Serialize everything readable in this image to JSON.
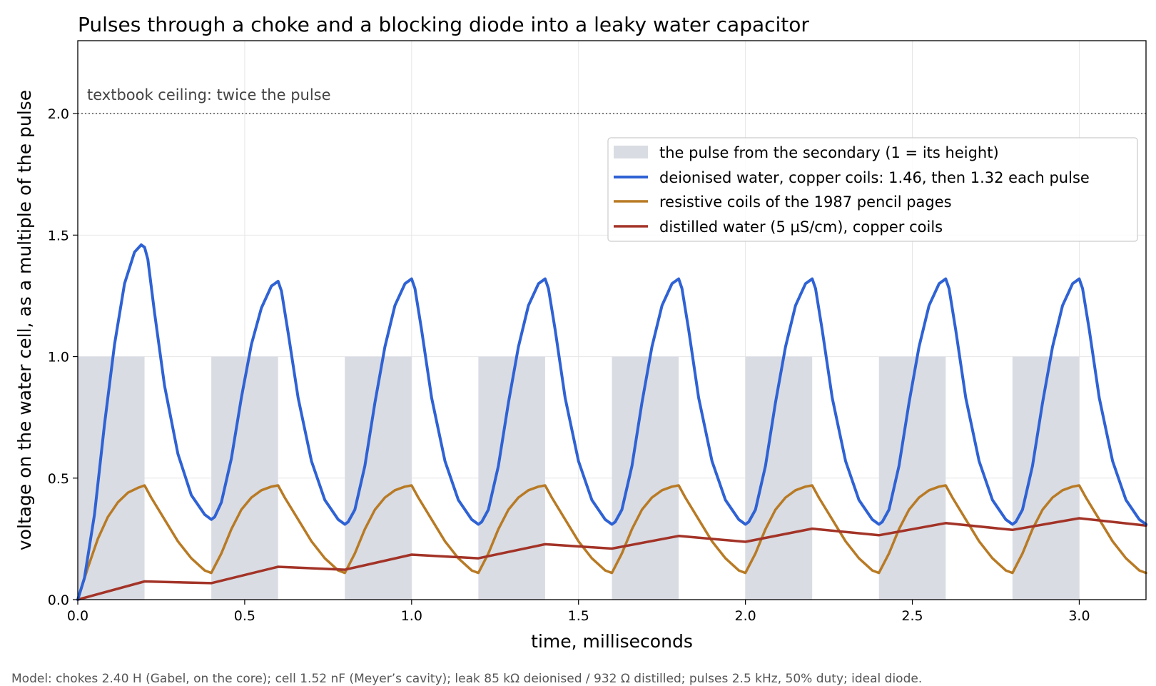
{
  "chart_data": {
    "type": "line",
    "title": "Pulses through a choke and a blocking diode into a leaky water capacitor",
    "xlabel": "time, milliseconds",
    "ylabel": "voltage on the water cell, as a multiple of the pulse",
    "xlim": [
      0,
      3.2
    ],
    "ylim": [
      0,
      2.3
    ],
    "xticks": [
      0.0,
      0.5,
      1.0,
      1.5,
      2.0,
      2.5,
      3.0
    ],
    "yticks": [
      0.0,
      0.5,
      1.0,
      1.5,
      2.0
    ],
    "grid": true,
    "legend_position": "upper-right",
    "ceiling": {
      "y": 2.0,
      "label": "textbook ceiling: twice the pulse"
    },
    "pulses": {
      "name": "the pulse from the secondary (1 = its height)",
      "color": "#d9dce3",
      "height": 1.0,
      "intervals": [
        [
          0.0,
          0.2
        ],
        [
          0.4,
          0.6
        ],
        [
          0.8,
          1.0
        ],
        [
          1.2,
          1.4
        ],
        [
          1.6,
          1.8
        ],
        [
          2.0,
          2.2
        ],
        [
          2.4,
          2.6
        ],
        [
          2.8,
          3.0
        ]
      ]
    },
    "series": [
      {
        "name": "deionised water, copper coils: 1.46, then 1.32 each pulse",
        "color": "#2f62d4",
        "width": 4,
        "x": [
          0.0,
          0.02,
          0.05,
          0.08,
          0.11,
          0.14,
          0.17,
          0.19,
          0.2,
          0.21,
          0.23,
          0.26,
          0.3,
          0.34,
          0.38,
          0.4,
          0.41,
          0.43,
          0.46,
          0.49,
          0.52,
          0.55,
          0.58,
          0.6,
          0.61,
          0.63,
          0.66,
          0.7,
          0.74,
          0.78,
          0.8,
          0.81,
          0.83,
          0.86,
          0.89,
          0.92,
          0.95,
          0.98,
          1.0,
          1.01,
          1.03,
          1.06,
          1.1,
          1.14,
          1.18,
          1.2,
          1.21,
          1.23,
          1.26,
          1.29,
          1.32,
          1.35,
          1.38,
          1.4,
          1.41,
          1.43,
          1.46,
          1.5,
          1.54,
          1.58,
          1.6,
          1.61,
          1.63,
          1.66,
          1.69,
          1.72,
          1.75,
          1.78,
          1.8,
          1.81,
          1.83,
          1.86,
          1.9,
          1.94,
          1.98,
          2.0,
          2.01,
          2.03,
          2.06,
          2.09,
          2.12,
          2.15,
          2.18,
          2.2,
          2.21,
          2.23,
          2.26,
          2.3,
          2.34,
          2.38,
          2.4,
          2.41,
          2.43,
          2.46,
          2.49,
          2.52,
          2.55,
          2.58,
          2.6,
          2.61,
          2.63,
          2.66,
          2.7,
          2.74,
          2.78,
          2.8,
          2.81,
          2.83,
          2.86,
          2.89,
          2.92,
          2.95,
          2.98,
          3.0,
          3.01,
          3.03,
          3.06,
          3.1,
          3.14,
          3.18,
          3.2
        ],
        "y": [
          0.0,
          0.09,
          0.35,
          0.72,
          1.05,
          1.3,
          1.43,
          1.46,
          1.45,
          1.4,
          1.18,
          0.88,
          0.6,
          0.43,
          0.35,
          0.33,
          0.34,
          0.4,
          0.58,
          0.83,
          1.05,
          1.2,
          1.29,
          1.31,
          1.27,
          1.1,
          0.83,
          0.57,
          0.41,
          0.33,
          0.31,
          0.32,
          0.37,
          0.55,
          0.81,
          1.04,
          1.21,
          1.3,
          1.32,
          1.28,
          1.11,
          0.83,
          0.57,
          0.41,
          0.33,
          0.31,
          0.32,
          0.37,
          0.55,
          0.81,
          1.04,
          1.21,
          1.3,
          1.32,
          1.28,
          1.11,
          0.83,
          0.57,
          0.41,
          0.33,
          0.31,
          0.32,
          0.37,
          0.55,
          0.81,
          1.04,
          1.21,
          1.3,
          1.32,
          1.28,
          1.11,
          0.83,
          0.57,
          0.41,
          0.33,
          0.31,
          0.32,
          0.37,
          0.55,
          0.81,
          1.04,
          1.21,
          1.3,
          1.32,
          1.28,
          1.11,
          0.83,
          0.57,
          0.41,
          0.33,
          0.31,
          0.32,
          0.37,
          0.55,
          0.81,
          1.04,
          1.21,
          1.3,
          1.32,
          1.28,
          1.11,
          0.83,
          0.57,
          0.41,
          0.33,
          0.31,
          0.32,
          0.37,
          0.55,
          0.81,
          1.04,
          1.21,
          1.3,
          1.32,
          1.28,
          1.11,
          0.83,
          0.57,
          0.41,
          0.33,
          0.31
        ]
      },
      {
        "name": "resistive coils of the 1987 pencil pages",
        "color": "#b87a24",
        "width": 3.5,
        "x": [
          0.0,
          0.03,
          0.06,
          0.09,
          0.12,
          0.15,
          0.18,
          0.2,
          0.22,
          0.26,
          0.3,
          0.34,
          0.38,
          0.4,
          0.43,
          0.46,
          0.49,
          0.52,
          0.55,
          0.58,
          0.6,
          0.62,
          0.66,
          0.7,
          0.74,
          0.78,
          0.8,
          0.83,
          0.86,
          0.89,
          0.92,
          0.95,
          0.98,
          1.0,
          1.02,
          1.06,
          1.1,
          1.14,
          1.18,
          1.2,
          1.23,
          1.26,
          1.29,
          1.32,
          1.35,
          1.38,
          1.4,
          1.42,
          1.46,
          1.5,
          1.54,
          1.58,
          1.6,
          1.63,
          1.66,
          1.69,
          1.72,
          1.75,
          1.78,
          1.8,
          1.82,
          1.86,
          1.9,
          1.94,
          1.98,
          2.0,
          2.03,
          2.06,
          2.09,
          2.12,
          2.15,
          2.18,
          2.2,
          2.22,
          2.26,
          2.3,
          2.34,
          2.38,
          2.4,
          2.43,
          2.46,
          2.49,
          2.52,
          2.55,
          2.58,
          2.6,
          2.62,
          2.66,
          2.7,
          2.74,
          2.78,
          2.8,
          2.83,
          2.86,
          2.89,
          2.92,
          2.95,
          2.98,
          3.0,
          3.02,
          3.06,
          3.1,
          3.14,
          3.18,
          3.2
        ],
        "y": [
          0.0,
          0.13,
          0.25,
          0.34,
          0.4,
          0.44,
          0.46,
          0.47,
          0.42,
          0.33,
          0.24,
          0.17,
          0.12,
          0.11,
          0.19,
          0.29,
          0.37,
          0.42,
          0.45,
          0.465,
          0.47,
          0.42,
          0.33,
          0.24,
          0.17,
          0.12,
          0.11,
          0.19,
          0.29,
          0.37,
          0.42,
          0.45,
          0.465,
          0.47,
          0.42,
          0.33,
          0.24,
          0.17,
          0.12,
          0.11,
          0.19,
          0.29,
          0.37,
          0.42,
          0.45,
          0.465,
          0.47,
          0.42,
          0.33,
          0.24,
          0.17,
          0.12,
          0.11,
          0.19,
          0.29,
          0.37,
          0.42,
          0.45,
          0.465,
          0.47,
          0.42,
          0.33,
          0.24,
          0.17,
          0.12,
          0.11,
          0.19,
          0.29,
          0.37,
          0.42,
          0.45,
          0.465,
          0.47,
          0.42,
          0.33,
          0.24,
          0.17,
          0.12,
          0.11,
          0.19,
          0.29,
          0.37,
          0.42,
          0.45,
          0.465,
          0.47,
          0.42,
          0.33,
          0.24,
          0.17,
          0.12,
          0.11,
          0.19,
          0.29,
          0.37,
          0.42,
          0.45,
          0.465,
          0.47,
          0.42,
          0.33,
          0.24,
          0.17,
          0.12,
          0.11
        ]
      },
      {
        "name": "distilled water (5 µS/cm), copper coils",
        "color": "#a33327",
        "width": 3.5,
        "x": [
          0.0,
          0.2,
          0.4,
          0.6,
          0.8,
          1.0,
          1.2,
          1.4,
          1.6,
          1.8,
          2.0,
          2.2,
          2.4,
          2.6,
          2.8,
          3.0,
          3.2
        ],
        "y": [
          0.0,
          0.075,
          0.068,
          0.135,
          0.123,
          0.185,
          0.17,
          0.228,
          0.21,
          0.262,
          0.238,
          0.292,
          0.265,
          0.315,
          0.287,
          0.335,
          0.305
        ]
      }
    ]
  },
  "footnote": "Model: chokes 2.40 H (Gabel, on the core); cell 1.52 nF (Meyer’s cavity); leak 85 kΩ deionised / 932 Ω distilled; pulses 2.5 kHz, 50% duty; ideal diode."
}
